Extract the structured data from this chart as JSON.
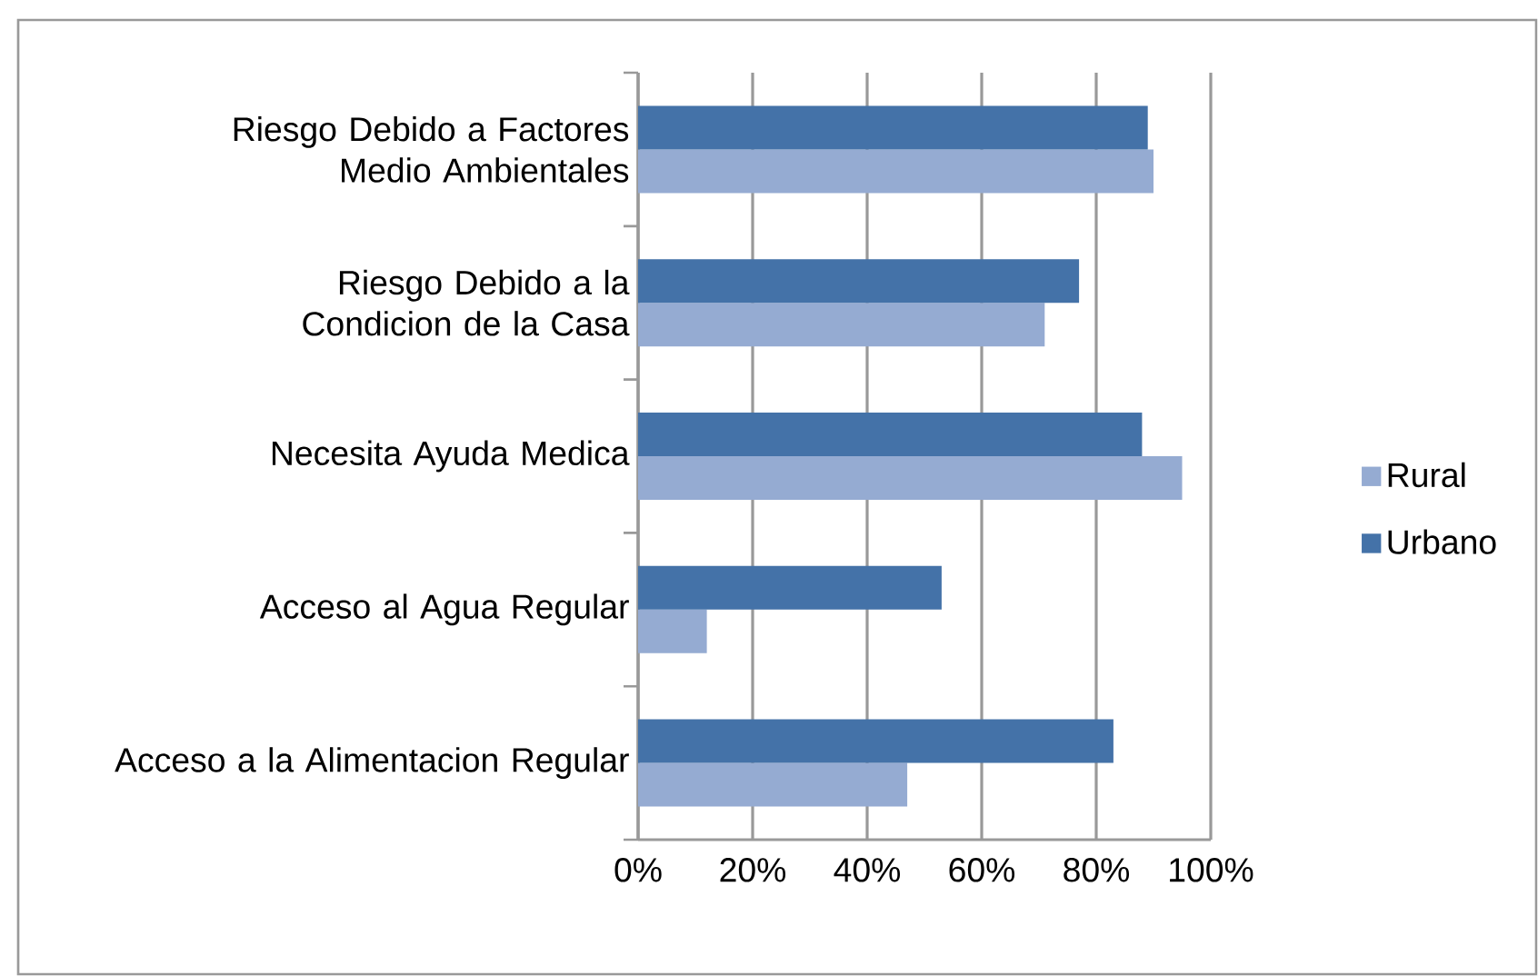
{
  "chart_data": {
    "type": "bar",
    "orientation": "horizontal",
    "categories": [
      "Riesgo Debido a Factores Medio Ambientales",
      "Riesgo Debido a la Condicion de la Casa",
      "Necesita Ayuda Medica",
      "Acceso al Agua Regular",
      "Acceso a la Alimentacion Regular"
    ],
    "series": [
      {
        "name": "Rural",
        "color": "#95abd2",
        "values": [
          90,
          71,
          95,
          12,
          47
        ]
      },
      {
        "name": "Urbano",
        "color": "#4472a8",
        "values": [
          89,
          77,
          88,
          53,
          83
        ]
      }
    ],
    "xlim": [
      0,
      100
    ],
    "xticks": [
      {
        "value": 0,
        "label": "0%"
      },
      {
        "value": 20,
        "label": "20%"
      },
      {
        "value": 40,
        "label": "40%"
      },
      {
        "value": 60,
        "label": "60%"
      },
      {
        "value": 80,
        "label": "80%"
      },
      {
        "value": 100,
        "label": "100%"
      }
    ],
    "grid": "x",
    "legend": "right"
  }
}
